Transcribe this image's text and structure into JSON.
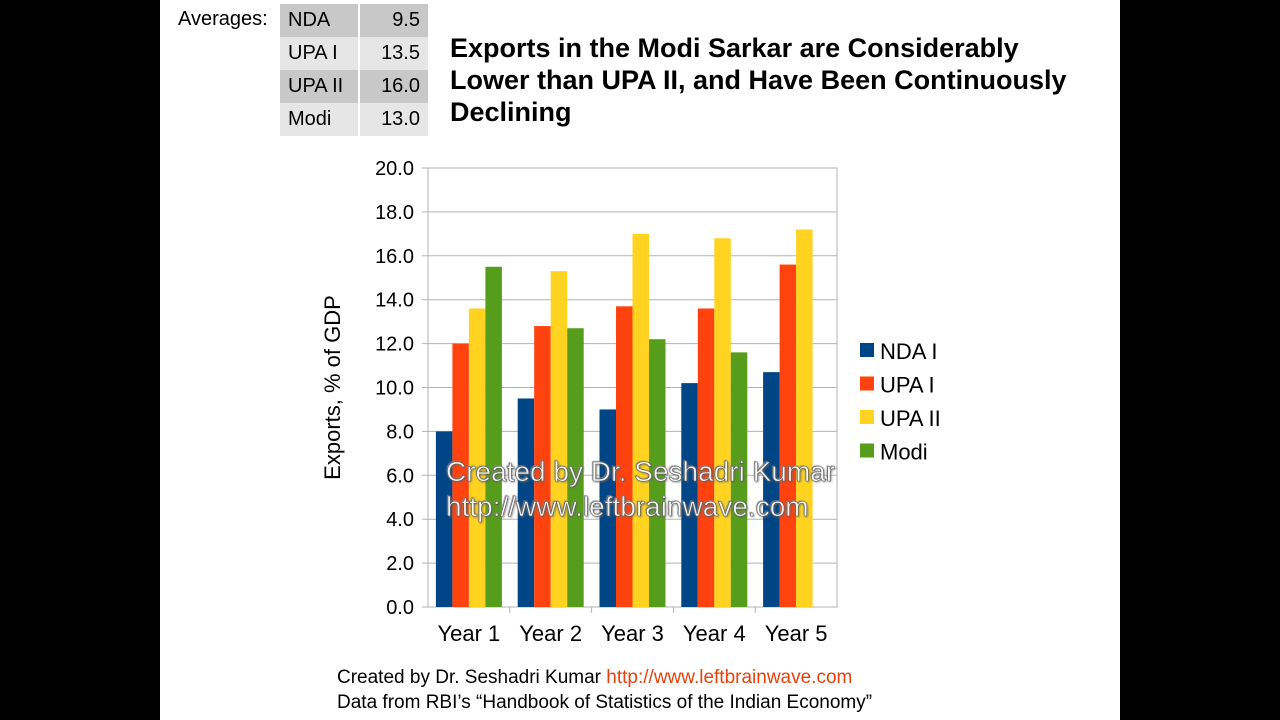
{
  "averages": {
    "label": "Averages:",
    "rows": [
      {
        "name": "NDA",
        "value": "9.5"
      },
      {
        "name": "UPA I",
        "value": "13.5"
      },
      {
        "name": "UPA II",
        "value": "16.0"
      },
      {
        "name": "Modi",
        "value": "13.0"
      }
    ]
  },
  "title": "Exports in the Modi Sarkar are Considerably Lower than UPA II, and Have Been Continuously Declining",
  "watermark": {
    "line1": "Created by Dr. Seshadri Kumar",
    "line2": "http://www.leftbrainwave.com"
  },
  "footer": {
    "credit_prefix": "Created by Dr. Seshadri Kumar",
    "credit_url": "http://www.leftbrainwave.com",
    "source": "Data from RBI’s “Handbook of Statistics of the Indian Economy”"
  },
  "chart_data": {
    "type": "bar",
    "categories": [
      "Year 1",
      "Year 2",
      "Year 3",
      "Year 4",
      "Year 5"
    ],
    "series": [
      {
        "name": "NDA I",
        "color": "#004586",
        "values": [
          8.0,
          9.5,
          9.0,
          10.2,
          10.7
        ]
      },
      {
        "name": "UPA I",
        "color": "#ff420e",
        "values": [
          12.0,
          12.8,
          13.7,
          13.6,
          15.6
        ]
      },
      {
        "name": "UPA II",
        "color": "#ffd320",
        "values": [
          13.6,
          15.3,
          17.0,
          16.8,
          17.2
        ]
      },
      {
        "name": "Modi",
        "color": "#579d1c",
        "values": [
          15.5,
          12.7,
          12.2,
          11.6,
          null
        ]
      }
    ],
    "xlabel": "",
    "ylabel": "Exports, % of GDP",
    "ylim": [
      0,
      20
    ],
    "yticks": [
      0,
      2,
      4,
      6,
      8,
      10,
      12,
      14,
      16,
      18,
      20
    ],
    "grid": true,
    "legend": "right"
  }
}
